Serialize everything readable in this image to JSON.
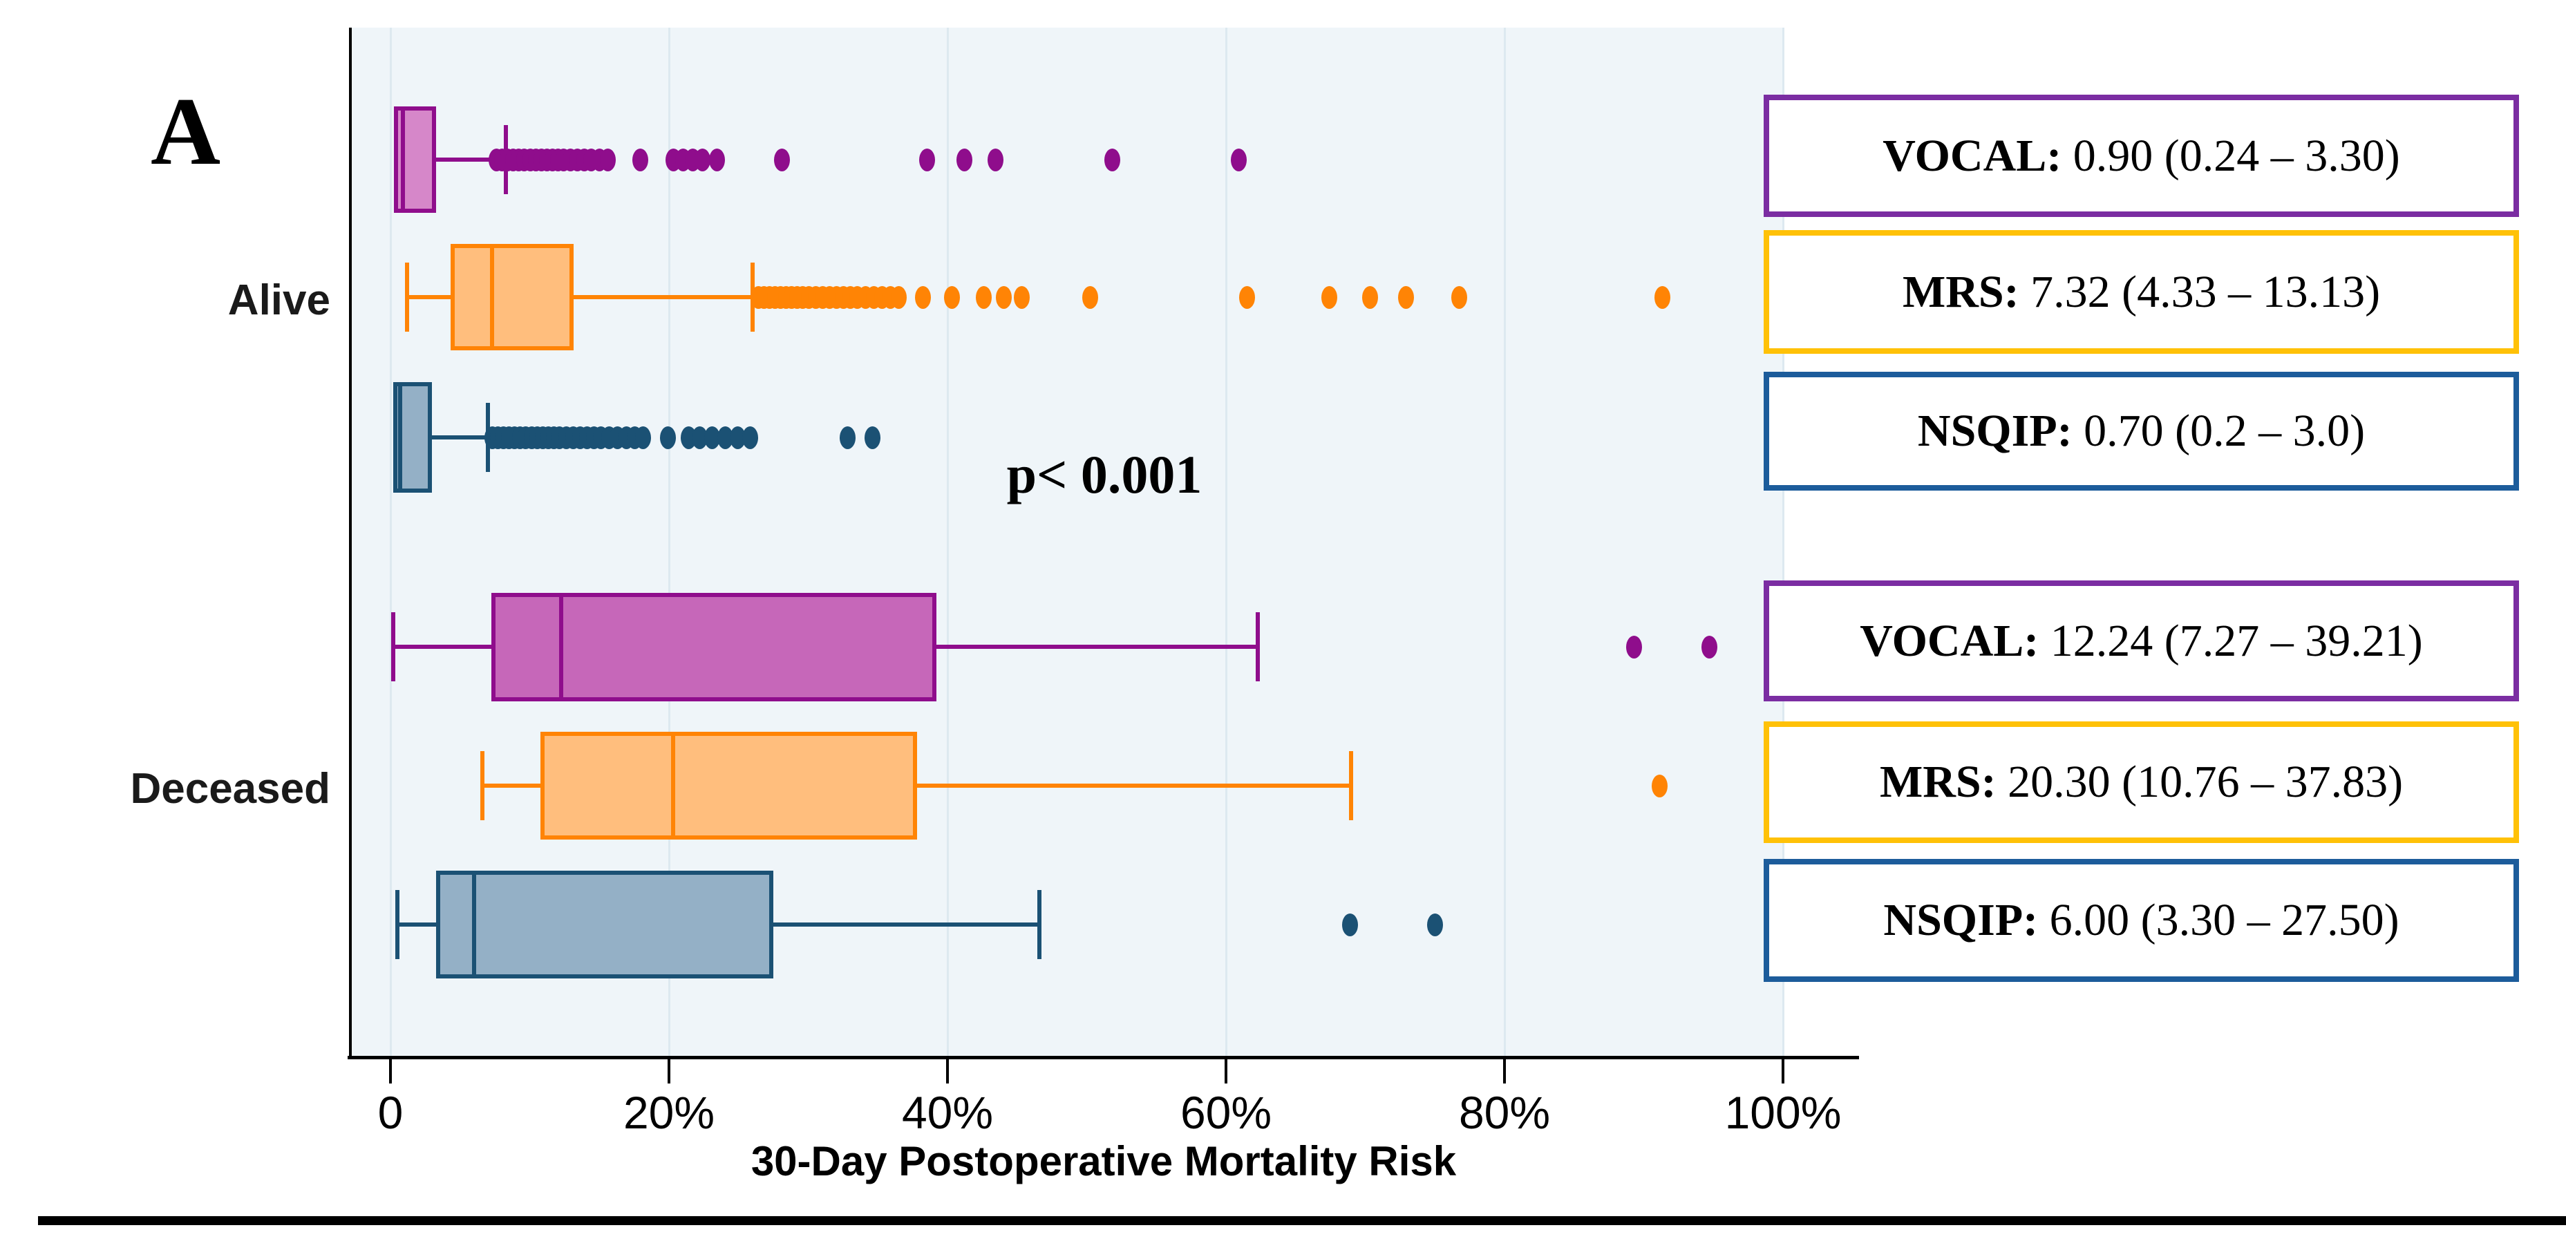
{
  "figure": {
    "panel_letter": "A",
    "annotation": "p< 0.001",
    "plot_bg": "#eff5f9",
    "grid_color": "#dde9f0",
    "axis_color": "#000000"
  },
  "chart_data": {
    "type": "box",
    "orientation": "horizontal",
    "xlabel": "30-Day Postoperative Mortality Risk",
    "x_range_pct": [
      0,
      100
    ],
    "grid": true,
    "x_ticks": [
      {
        "value": 0,
        "label": "0"
      },
      {
        "value": 20,
        "label": "20%"
      },
      {
        "value": 40,
        "label": "40%"
      },
      {
        "value": 60,
        "label": "60%"
      },
      {
        "value": 80,
        "label": "80%"
      },
      {
        "value": 100,
        "label": "100%"
      }
    ],
    "groups": [
      {
        "name": "Alive",
        "series": [
          {
            "name": "VOCAL",
            "median": 0.9,
            "q1": 0.24,
            "q3": 3.3,
            "whisker_low": 0,
            "whisker_high": 8.3,
            "stroke": "#8f0d8c",
            "fill": "#d687c9",
            "dot": "#8f0d8c",
            "outliers": [
              7.6,
              8.0,
              8.4,
              8.8,
              9.2,
              9.6,
              10.0,
              10.4,
              10.8,
              11.2,
              11.6,
              12.0,
              12.4,
              12.9,
              13.4,
              13.9,
              14.4,
              15.0,
              15.6,
              17.9,
              20.3,
              21.0,
              21.7,
              22.4,
              23.4,
              28.1,
              38.5,
              41.2,
              43.4,
              51.8,
              60.9
            ]
          },
          {
            "name": "MRS",
            "median": 7.32,
            "q1": 4.33,
            "q3": 13.13,
            "whisker_low": 1.2,
            "whisker_high": 26.0,
            "stroke": "#ff8405",
            "fill": "#ffbe7d",
            "dot": "#ff8405",
            "outliers": [
              26.4,
              26.8,
              27.2,
              27.6,
              28.0,
              28.4,
              28.8,
              29.2,
              29.6,
              30.0,
              30.5,
              31.0,
              31.5,
              32.0,
              32.5,
              33.0,
              33.5,
              34.1,
              34.7,
              35.3,
              35.9,
              36.5,
              38.2,
              40.3,
              42.6,
              44.0,
              45.3,
              50.2,
              61.5,
              67.4,
              70.3,
              72.9,
              76.7,
              91.3
            ]
          },
          {
            "name": "NSQIP",
            "median": 0.7,
            "q1": 0.2,
            "q3": 3.0,
            "whisker_low": 0,
            "whisker_high": 7.0,
            "stroke": "#1b5174",
            "fill": "#94b0c6",
            "dot": "#1b5174",
            "outliers": [
              7.3,
              7.7,
              8.1,
              8.5,
              8.9,
              9.3,
              9.7,
              10.1,
              10.5,
              10.9,
              11.3,
              11.7,
              12.1,
              12.6,
              13.1,
              13.6,
              14.1,
              14.6,
              15.1,
              15.7,
              16.3,
              16.9,
              17.5,
              18.1,
              19.9,
              21.4,
              22.2,
              23.1,
              24.0,
              24.9,
              25.8,
              32.8,
              34.6
            ]
          }
        ]
      },
      {
        "name": "Deceased",
        "series": [
          {
            "name": "VOCAL",
            "median": 12.24,
            "q1": 7.27,
            "q3": 39.21,
            "whisker_low": 0.2,
            "whisker_high": 62.3,
            "stroke": "#8f0d8c",
            "fill": "#c667b9",
            "dot": "#8f0d8c",
            "outliers": [
              89.3,
              94.7
            ]
          },
          {
            "name": "MRS",
            "median": 20.3,
            "q1": 10.76,
            "q3": 37.83,
            "whisker_low": 6.6,
            "whisker_high": 69.0,
            "stroke": "#ff8405",
            "fill": "#ffbe7d",
            "dot": "#ff8405",
            "outliers": [
              91.1
            ]
          },
          {
            "name": "NSQIP",
            "median": 6.0,
            "q1": 3.3,
            "q3": 27.5,
            "whisker_low": 0.5,
            "whisker_high": 46.6,
            "stroke": "#1b5174",
            "fill": "#94b0c6",
            "dot": "#1b5174",
            "outliers": [
              68.9,
              75.0
            ]
          }
        ]
      }
    ],
    "annotation": "p< 0.001",
    "legend_position": "right",
    "legend": [
      {
        "label": "VOCAL:",
        "value": "0.90 (0.24 – 3.30)",
        "border": "#7b2da2"
      },
      {
        "label": "MRS:",
        "value": "7.32 (4.33 – 13.13)",
        "border": "#ffc107"
      },
      {
        "label": "NSQIP:",
        "value": "0.70 (0.2 – 3.0)",
        "border": "#1c5c9b"
      },
      {
        "label": "VOCAL:",
        "value": "12.24 (7.27 – 39.21)",
        "border": "#7b2da2"
      },
      {
        "label": "MRS:",
        "value": "20.30 (10.76 – 37.83)",
        "border": "#ffc107"
      },
      {
        "label": "NSQIP:",
        "value": "6.00 (3.30 – 27.50)",
        "border": "#1c5c9b"
      }
    ]
  }
}
